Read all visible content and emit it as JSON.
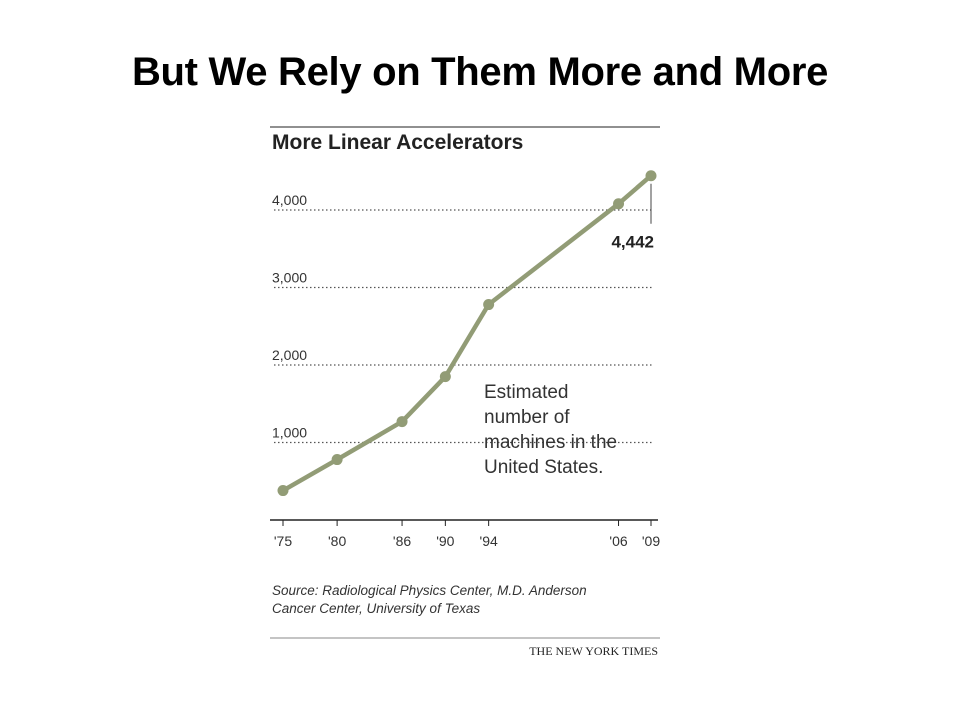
{
  "slide_title": "But We Rely on Them More and More",
  "colors": {
    "line": "#929c76",
    "text": "#222222",
    "grid": "#555555"
  },
  "chart_data": {
    "type": "line",
    "title": "More Linear Accelerators",
    "x": [
      1975,
      1980,
      1986,
      1990,
      1994,
      2006,
      2009
    ],
    "values": [
      380,
      780,
      1270,
      1850,
      2780,
      4080,
      4442
    ],
    "x_ticks": [
      1975,
      1980,
      1986,
      1990,
      1994,
      2006,
      2009
    ],
    "x_tick_labels": [
      "'75",
      "'80",
      "'86",
      "'90",
      "'94",
      "'06",
      "'09"
    ],
    "y_ticks": [
      1000,
      2000,
      3000,
      4000
    ],
    "y_tick_labels": [
      "1,000",
      "2,000",
      "3,000",
      "4,000"
    ],
    "ylim": [
      0,
      4800
    ],
    "grid": "dotted horizontal",
    "callout": {
      "value_label": "4,442"
    },
    "annotation": [
      "Estimated",
      "number of",
      "machines in the",
      "United States."
    ],
    "source": [
      "Source: Radiological Physics Center, M.D. Anderson",
      "Cancer Center, University of Texas"
    ],
    "credit": "THE NEW YORK TIMES"
  }
}
